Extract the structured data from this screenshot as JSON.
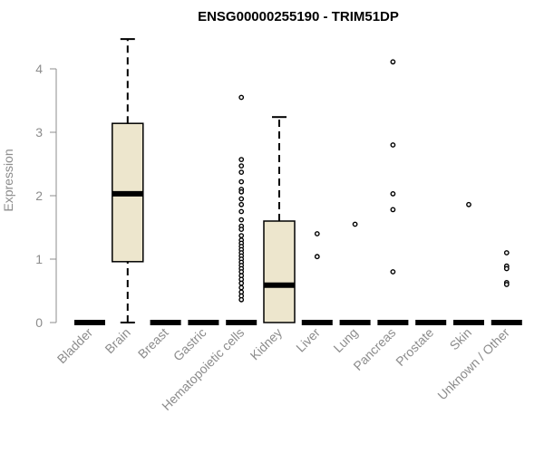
{
  "chart_data": {
    "type": "boxplot",
    "title": "ENSG00000255190 - TRIM51DP",
    "xlabel": "",
    "ylabel": "Expression",
    "ylim": [
      0,
      4.5
    ],
    "yticks": [
      "0",
      "1",
      "2",
      "3",
      "4"
    ],
    "grid": false,
    "legend": "none",
    "colors": {
      "box_fill": "#ede6cd",
      "stroke": "#000000",
      "axis_text": "#8c8c8c"
    },
    "categories": [
      "Bladder",
      "Brain",
      "Breast",
      "Gastric",
      "Hematopoietic cells",
      "Kidney",
      "Liver",
      "Lung",
      "Pancreas",
      "Prostate",
      "Skin",
      "Unknown / Other"
    ],
    "boxes": [
      {
        "min": 0,
        "q1": 0,
        "median": 0,
        "q3": 0,
        "max": 0,
        "outliers": []
      },
      {
        "min": 0,
        "q1": 0.96,
        "median": 2.03,
        "q3": 3.14,
        "max": 4.47,
        "outliers": []
      },
      {
        "min": 0,
        "q1": 0,
        "median": 0,
        "q3": 0,
        "max": 0,
        "outliers": []
      },
      {
        "min": 0,
        "q1": 0,
        "median": 0,
        "q3": 0,
        "max": 0,
        "outliers": []
      },
      {
        "min": 0,
        "q1": 0,
        "median": 0,
        "q3": 0,
        "max": 0,
        "outliers": [
          3.55,
          2.57,
          2.47,
          2.37,
          2.22,
          2.1,
          2.06,
          1.95,
          1.86,
          1.75,
          1.62,
          1.52,
          1.47,
          1.37,
          1.3,
          1.25,
          1.2,
          1.15,
          1.1,
          1.05,
          1.0,
          0.95,
          0.9,
          0.85,
          0.8,
          0.74,
          0.68,
          0.62,
          0.55,
          0.48,
          0.42,
          0.36
        ]
      },
      {
        "min": 0,
        "q1": 0,
        "median": 0.59,
        "q3": 1.6,
        "max": 3.24,
        "outliers": []
      },
      {
        "min": 0,
        "q1": 0,
        "median": 0,
        "q3": 0,
        "max": 0,
        "outliers": [
          1.4,
          1.04
        ]
      },
      {
        "min": 0,
        "q1": 0,
        "median": 0,
        "q3": 0,
        "max": 0,
        "outliers": [
          1.55
        ]
      },
      {
        "min": 0,
        "q1": 0,
        "median": 0,
        "q3": 0,
        "max": 0,
        "outliers": [
          4.11,
          2.8,
          2.03,
          1.78,
          0.8
        ]
      },
      {
        "min": 0,
        "q1": 0,
        "median": 0,
        "q3": 0,
        "max": 0,
        "outliers": []
      },
      {
        "min": 0,
        "q1": 0,
        "median": 0,
        "q3": 0,
        "max": 0,
        "outliers": [
          1.86
        ]
      },
      {
        "min": 0,
        "q1": 0,
        "median": 0,
        "q3": 0,
        "max": 0,
        "outliers": [
          1.1,
          0.89,
          0.85,
          0.63,
          0.6
        ]
      }
    ]
  }
}
